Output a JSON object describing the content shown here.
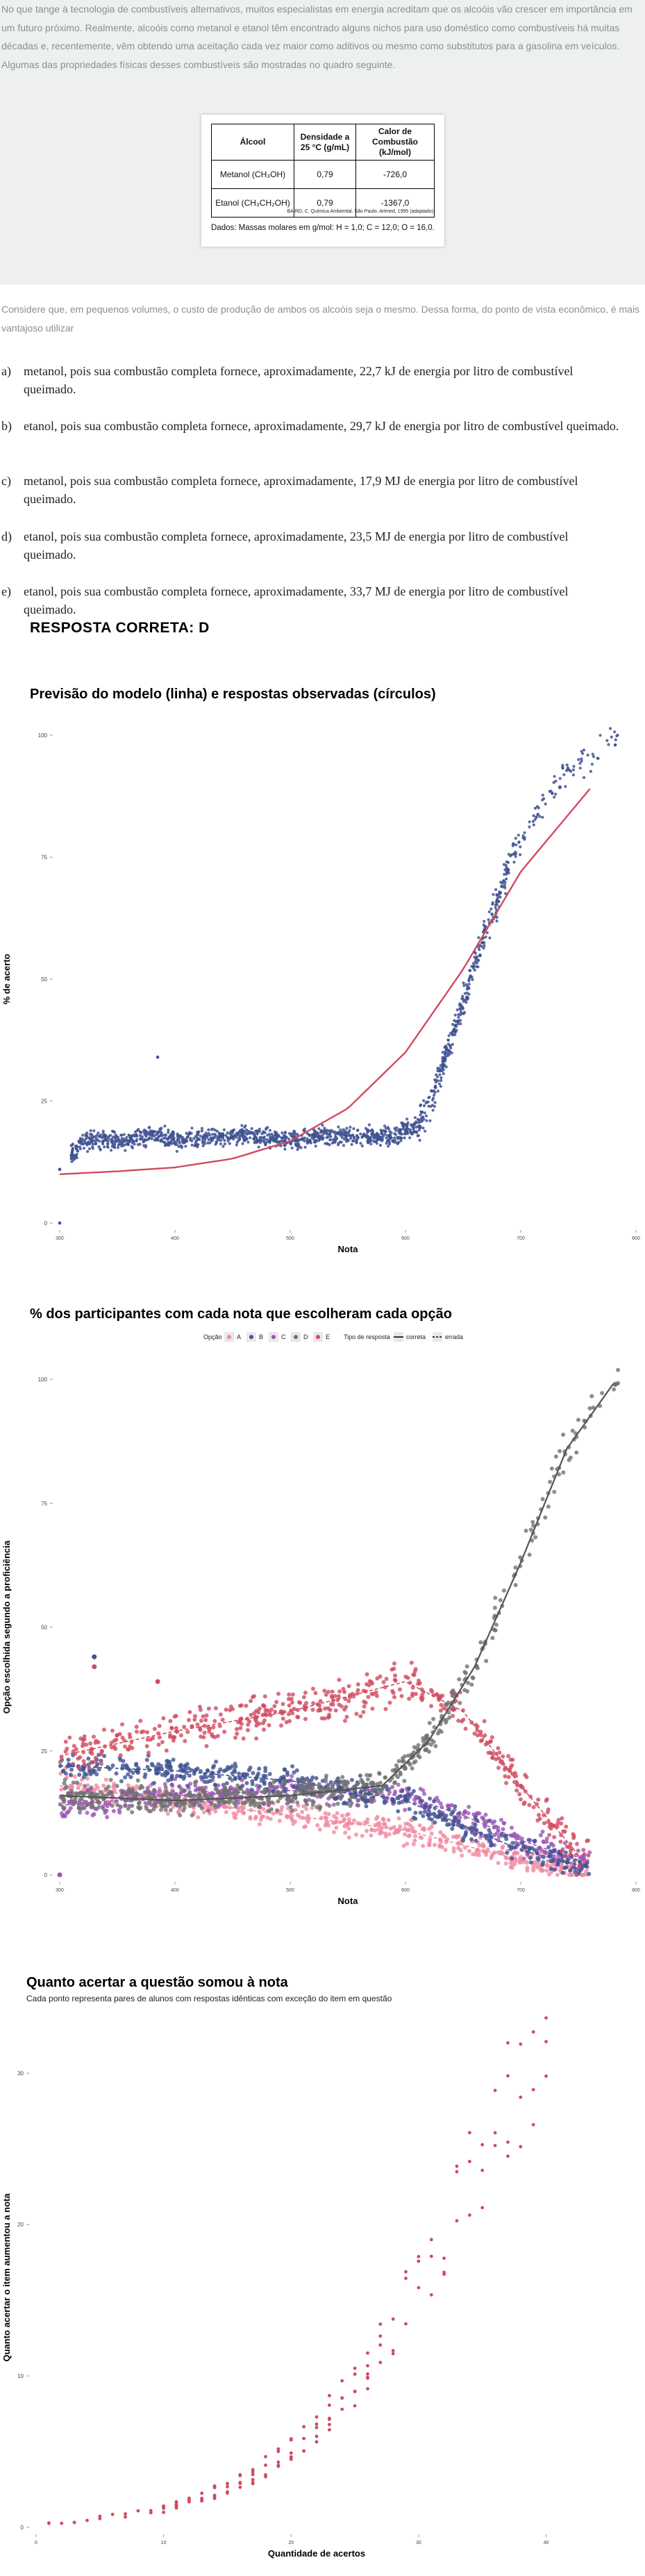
{
  "question": {
    "intro": "No que tange à tecnologia de combustíveis alternativos, muitos especialistas em energia acreditam que os alcoóis vão crescer em importância em um futuro próximo. Realmente, alcoóis como metanol e etanol têm encontrado alguns nichos para uso doméstico como combustíveis há muitas décadas e, recentemente, vêm obtendo uma aceitação cada vez maior como aditivos ou mesmo como substitutos para a gasolina em veículos. Algumas das propriedades físicas desses combustíveis são mostradas no quadro seguinte.",
    "table": {
      "headers": [
        "Álcool",
        "Densidade a 25 °C (g/mL)",
        "Calor de Combustão (kJ/mol)"
      ],
      "rows": [
        [
          "Metanol (CH₃OH)",
          "0,79",
          "-726,0"
        ],
        [
          "Etanol (CH₃CH₂OH)",
          "0,79",
          "-1367,0"
        ]
      ],
      "source": "BAIRD, C. Química Ambiental. São Paulo. Artmed, 1995 (adaptado).",
      "note": "Dados: Massas molares em g/mol: H = 1,0; C = 12,0; O = 16,0."
    },
    "stem": "Considere que, em pequenos volumes, o custo de produção de ambos os alcoóis seja o mesmo. Dessa forma, do ponto de vista econômico, é mais vantajoso utilizar",
    "options": [
      {
        "letter": "a)",
        "text": "metanol, pois sua combustão completa fornece, aproximadamente, 22,7 kJ de energia por litro de combustível queimado."
      },
      {
        "letter": "b)",
        "text": "etanol, pois sua combustão completa fornece, aproximadamente, 29,7 kJ de energia por litro de combustível queimado."
      },
      {
        "letter": "c)",
        "text": "metanol, pois sua combustão completa fornece, aproximadamente, 17,9 MJ de energia por litro de combustível queimado."
      },
      {
        "letter": "d)",
        "text": "etanol, pois sua combustão completa fornece, aproximadamente, 23,5 MJ de energia por litro de combustível queimado."
      },
      {
        "letter": "e)",
        "text": "etanol, pois sua combustão completa fornece, aproximadamente, 33,7 MJ de energia por litro de combustível queimado."
      }
    ],
    "answer": "RESPOSTA CORRETA: D"
  },
  "colors": {
    "model_line": "#d14a5f",
    "observed_points": "#3e5190",
    "opt_A": "#f08aa0",
    "opt_B": "#3e5190",
    "opt_C": "#9b55b5",
    "opt_D": "#707070",
    "opt_E": "#d14a5f"
  },
  "chart_data": [
    {
      "type": "scatter",
      "title": "Previsão do modelo (linha) e respostas observadas (círculos)",
      "xlabel": "Nota",
      "ylabel": "% de acerto",
      "x_ticks": [
        "300",
        "400",
        "500",
        "600",
        "700",
        "800"
      ],
      "y_ticks": [
        "0",
        "25",
        "50",
        "75",
        "100"
      ],
      "xlim": [
        300,
        800
      ],
      "ylim": [
        0,
        100
      ],
      "series": [
        {
          "kind": "line",
          "x": [
            300,
            350,
            400,
            450,
            500,
            550,
            600,
            650,
            700,
            760
          ],
          "y": [
            10,
            10.6,
            11.4,
            13.2,
            16.8,
            23.5,
            35,
            52,
            72,
            89
          ]
        },
        {
          "kind": "points",
          "x": [
            300,
            320,
            350,
            380,
            400,
            430,
            460,
            500,
            530,
            560,
            590,
            610,
            620,
            630,
            640,
            650,
            660,
            670,
            680,
            690,
            700,
            710,
            720,
            740,
            760,
            780
          ],
          "y": [
            11,
            17,
            17,
            18,
            17,
            17.5,
            18,
            17,
            18,
            17.5,
            18,
            20,
            24,
            30,
            38,
            45,
            53,
            60,
            66,
            74,
            78,
            82,
            86,
            92,
            95,
            100
          ]
        }
      ]
    },
    {
      "type": "scatter",
      "title": "% dos participantes com cada nota que escolheram cada opção",
      "xlabel": "Nota",
      "ylabel": "Opção escolhida segundo a proficiência",
      "legend": {
        "option_label": "Opção",
        "options": [
          "A",
          "B",
          "C",
          "D",
          "E"
        ],
        "type_label": "Tipo de resposta",
        "types": [
          "correta",
          "errada"
        ],
        "placement": "top-center"
      },
      "x_ticks": [
        "300",
        "400",
        "500",
        "600",
        "700",
        "800"
      ],
      "y_ticks": [
        "0",
        "25",
        "50",
        "75",
        "100"
      ],
      "xlim": [
        300,
        800
      ],
      "ylim": [
        0,
        100
      ],
      "series": [
        {
          "name": "A",
          "x": [
            300,
            400,
            500,
            600,
            650,
            700,
            750
          ],
          "y": [
            18,
            15,
            12,
            9,
            6,
            3,
            1
          ]
        },
        {
          "name": "B",
          "x": [
            300,
            400,
            500,
            600,
            650,
            700,
            750
          ],
          "y": [
            22,
            21,
            19,
            15,
            10,
            5,
            2
          ]
        },
        {
          "name": "C",
          "x": [
            300,
            400,
            500,
            600,
            650,
            700,
            750
          ],
          "y": [
            14,
            16,
            17,
            16,
            12,
            7,
            3
          ]
        },
        {
          "name": "D",
          "x": [
            300,
            400,
            500,
            580,
            620,
            660,
            700,
            740,
            780
          ],
          "y": [
            16,
            15,
            16,
            18,
            27,
            42,
            63,
            86,
            99
          ]
        },
        {
          "name": "E",
          "x": [
            300,
            400,
            500,
            600,
            650,
            700,
            750
          ],
          "y": [
            24,
            29,
            33,
            39,
            33,
            18,
            4
          ]
        }
      ]
    },
    {
      "type": "scatter",
      "title": "Quanto acertar a questão somou à nota",
      "subtitle": "Cada ponto representa pares de alunos com respostas idênticas com exceção do item em questão",
      "xlabel": "Quantidade de acertos",
      "ylabel": "Quanto acertar o item aumentou a nota",
      "x_ticks": [
        "0",
        "10",
        "20",
        "30",
        "40"
      ],
      "y_ticks": [
        "0",
        "10",
        "20",
        "30"
      ],
      "xlim": [
        0,
        44
      ],
      "ylim": [
        0,
        33
      ],
      "series": [
        {
          "x": [
            1,
            3,
            5,
            7,
            9,
            11,
            13,
            15,
            17,
            19,
            21,
            23,
            25,
            27,
            29,
            31,
            33,
            35,
            37,
            39
          ],
          "y": [
            0.3,
            0.4,
            0.6,
            0.8,
            1.0,
            1.5,
            2.0,
            2.6,
            3.5,
            4.5,
            6,
            7.5,
            9.5,
            12,
            14.5,
            17.5,
            21,
            24,
            27,
            31
          ]
        }
      ]
    }
  ]
}
